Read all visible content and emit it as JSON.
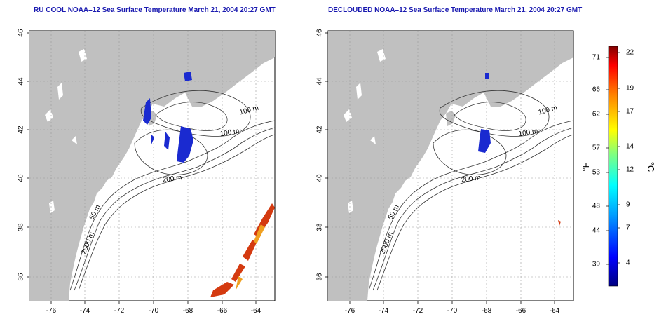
{
  "left_panel": {
    "title": "RU COOL NOAA–12 Sea Surface Temperature March 21, 2004 20:27 GMT"
  },
  "right_panel": {
    "title": "DECLOUDED NOAA–12 Sea Surface Temperature March 21, 2004 20:27 GMT"
  },
  "x_ticks": [
    "-76",
    "-74",
    "-72",
    "-70",
    "-68",
    "-66",
    "-64"
  ],
  "y_ticks": [
    "36",
    "38",
    "40",
    "42",
    "44",
    "46"
  ],
  "contour_labels": [
    "100 m",
    "100 m",
    "200 m",
    "50 m",
    "2000 m"
  ],
  "colorbar": {
    "fahrenheit_label": "°F",
    "celsius_label": "°C",
    "fahrenheit_ticks": [
      "71",
      "66",
      "62",
      "57",
      "53",
      "48",
      "44",
      "39"
    ],
    "celsius_ticks": [
      "22",
      "19",
      "17",
      "14",
      "12",
      "9",
      "7",
      "4"
    ]
  },
  "colors": {
    "title": "#1a1ab0",
    "land": "#c0c0c0",
    "cold": "#1a2ad0",
    "warm": "#d43a10"
  }
}
